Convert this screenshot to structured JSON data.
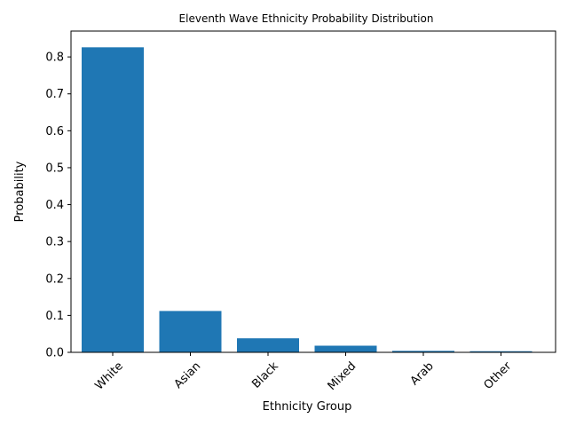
{
  "chart_data": {
    "type": "bar",
    "title": "Eleventh Wave Ethnicity Probability Distribution",
    "xlabel": "Ethnicity Group",
    "ylabel": "Probability",
    "categories": [
      "White",
      "Asian",
      "Black",
      "Mixed",
      "Arab",
      "Other"
    ],
    "values": [
      0.826,
      0.112,
      0.038,
      0.018,
      0.004,
      0.003
    ],
    "ylim": [
      0,
      0.87
    ],
    "yticks": [
      "0.0",
      "0.1",
      "0.2",
      "0.3",
      "0.4",
      "0.5",
      "0.6",
      "0.7",
      "0.8"
    ],
    "bar_color": "#1f77b4",
    "grid": false,
    "legend": false
  }
}
